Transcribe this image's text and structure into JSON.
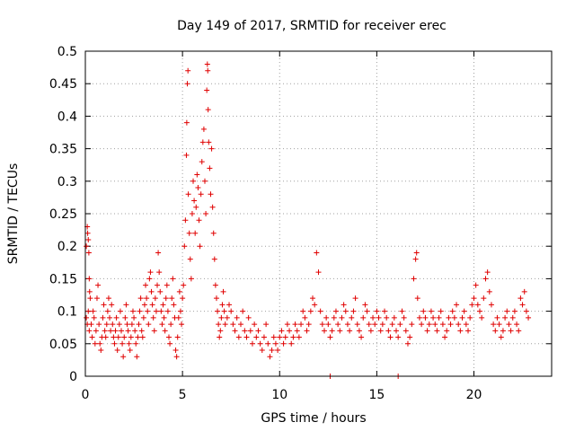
{
  "chart_data": {
    "type": "scatter",
    "title": "Day 149 of 2017, SRMTID for receiver erec",
    "xlabel": "GPS time / hours",
    "ylabel": "SRMTID / TECUs",
    "xlim": [
      0,
      24
    ],
    "ylim": [
      0,
      0.5
    ],
    "xticks": [
      0,
      5,
      10,
      15,
      20
    ],
    "yticks": [
      0,
      0.05,
      0.1,
      0.15,
      0.2,
      0.25,
      0.3,
      0.35,
      0.4,
      0.45,
      0.5
    ],
    "xtick_labels": [
      "0",
      "5",
      "10",
      "15",
      "20"
    ],
    "ytick_labels": [
      "0",
      "0.05",
      "0.1",
      "0.15",
      "0.2",
      "0.25",
      "0.3",
      "0.35",
      "0.4",
      "0.45",
      "0.5"
    ],
    "grid": true,
    "marker": "+",
    "color": "#e00000",
    "series": [
      {
        "name": "SRMTID",
        "points": [
          [
            0.05,
            0.2
          ],
          [
            0.1,
            0.23
          ],
          [
            0.12,
            0.22
          ],
          [
            0.15,
            0.21
          ],
          [
            0.18,
            0.19
          ],
          [
            0.2,
            0.15
          ],
          [
            0.22,
            0.13
          ],
          [
            0.25,
            0.12
          ],
          [
            0.05,
            0.09
          ],
          [
            0.1,
            0.08
          ],
          [
            0.15,
            0.1
          ],
          [
            0.2,
            0.07
          ],
          [
            0.3,
            0.08
          ],
          [
            0.35,
            0.06
          ],
          [
            0.4,
            0.1
          ],
          [
            0.45,
            0.09
          ],
          [
            0.5,
            0.05
          ],
          [
            0.55,
            0.07
          ],
          [
            0.6,
            0.12
          ],
          [
            0.65,
            0.14
          ],
          [
            0.7,
            0.08
          ],
          [
            0.75,
            0.05
          ],
          [
            0.8,
            0.04
          ],
          [
            0.85,
            0.06
          ],
          [
            0.9,
            0.09
          ],
          [
            0.95,
            0.11
          ],
          [
            1.0,
            0.07
          ],
          [
            1.05,
            0.06
          ],
          [
            1.1,
            0.08
          ],
          [
            1.15,
            0.1
          ],
          [
            1.2,
            0.12
          ],
          [
            1.25,
            0.09
          ],
          [
            1.3,
            0.07
          ],
          [
            1.35,
            0.11
          ],
          [
            1.4,
            0.08
          ],
          [
            1.45,
            0.06
          ],
          [
            1.5,
            0.05
          ],
          [
            1.55,
            0.07
          ],
          [
            1.6,
            0.09
          ],
          [
            1.65,
            0.04
          ],
          [
            1.7,
            0.06
          ],
          [
            1.75,
            0.08
          ],
          [
            1.8,
            0.1
          ],
          [
            1.85,
            0.07
          ],
          [
            1.9,
            0.05
          ],
          [
            1.95,
            0.03
          ],
          [
            2.0,
            0.06
          ],
          [
            2.05,
            0.09
          ],
          [
            2.1,
            0.11
          ],
          [
            2.15,
            0.08
          ],
          [
            2.2,
            0.07
          ],
          [
            2.25,
            0.05
          ],
          [
            2.3,
            0.04
          ],
          [
            2.35,
            0.06
          ],
          [
            2.4,
            0.08
          ],
          [
            2.45,
            0.1
          ],
          [
            2.5,
            0.09
          ],
          [
            2.55,
            0.07
          ],
          [
            2.6,
            0.05
          ],
          [
            2.65,
            0.03
          ],
          [
            2.7,
            0.06
          ],
          [
            2.75,
            0.08
          ],
          [
            2.8,
            0.1
          ],
          [
            2.85,
            0.12
          ],
          [
            2.9,
            0.07
          ],
          [
            2.95,
            0.06
          ],
          [
            3.0,
            0.09
          ],
          [
            3.05,
            0.11
          ],
          [
            3.1,
            0.14
          ],
          [
            3.15,
            0.12
          ],
          [
            3.2,
            0.1
          ],
          [
            3.25,
            0.08
          ],
          [
            3.3,
            0.15
          ],
          [
            3.35,
            0.16
          ],
          [
            3.4,
            0.13
          ],
          [
            3.45,
            0.11
          ],
          [
            3.5,
            0.09
          ],
          [
            3.55,
            0.07
          ],
          [
            3.6,
            0.12
          ],
          [
            3.65,
            0.1
          ],
          [
            3.7,
            0.14
          ],
          [
            3.75,
            0.19
          ],
          [
            3.8,
            0.16
          ],
          [
            3.85,
            0.13
          ],
          [
            3.9,
            0.1
          ],
          [
            3.95,
            0.08
          ],
          [
            4.0,
            0.11
          ],
          [
            4.05,
            0.09
          ],
          [
            4.1,
            0.07
          ],
          [
            4.15,
            0.12
          ],
          [
            4.2,
            0.14
          ],
          [
            4.25,
            0.1
          ],
          [
            4.3,
            0.06
          ],
          [
            4.35,
            0.05
          ],
          [
            4.4,
            0.08
          ],
          [
            4.45,
            0.12
          ],
          [
            4.5,
            0.15
          ],
          [
            4.55,
            0.11
          ],
          [
            4.6,
            0.09
          ],
          [
            4.65,
            0.04
          ],
          [
            4.7,
            0.03
          ],
          [
            4.75,
            0.06
          ],
          [
            4.8,
            0.09
          ],
          [
            4.85,
            0.13
          ],
          [
            4.9,
            0.1
          ],
          [
            4.95,
            0.08
          ],
          [
            5.0,
            0.12
          ],
          [
            5.05,
            0.14
          ],
          [
            5.1,
            0.2
          ],
          [
            5.15,
            0.24
          ],
          [
            5.2,
            0.34
          ],
          [
            5.22,
            0.39
          ],
          [
            5.25,
            0.45
          ],
          [
            5.28,
            0.47
          ],
          [
            5.3,
            0.28
          ],
          [
            5.35,
            0.22
          ],
          [
            5.4,
            0.18
          ],
          [
            5.45,
            0.15
          ],
          [
            5.5,
            0.25
          ],
          [
            5.55,
            0.3
          ],
          [
            5.6,
            0.27
          ],
          [
            5.65,
            0.22
          ],
          [
            5.7,
            0.26
          ],
          [
            5.75,
            0.31
          ],
          [
            5.8,
            0.29
          ],
          [
            5.85,
            0.24
          ],
          [
            5.9,
            0.2
          ],
          [
            5.95,
            0.28
          ],
          [
            6.0,
            0.33
          ],
          [
            6.05,
            0.36
          ],
          [
            6.1,
            0.38
          ],
          [
            6.15,
            0.3
          ],
          [
            6.2,
            0.25
          ],
          [
            6.25,
            0.44
          ],
          [
            6.28,
            0.48
          ],
          [
            6.3,
            0.47
          ],
          [
            6.32,
            0.41
          ],
          [
            6.35,
            0.36
          ],
          [
            6.4,
            0.32
          ],
          [
            6.45,
            0.28
          ],
          [
            6.5,
            0.35
          ],
          [
            6.55,
            0.26
          ],
          [
            6.6,
            0.22
          ],
          [
            6.65,
            0.18
          ],
          [
            6.7,
            0.14
          ],
          [
            6.75,
            0.12
          ],
          [
            6.8,
            0.1
          ],
          [
            6.85,
            0.08
          ],
          [
            6.9,
            0.06
          ],
          [
            6.95,
            0.07
          ],
          [
            7.0,
            0.09
          ],
          [
            7.05,
            0.11
          ],
          [
            7.1,
            0.13
          ],
          [
            7.15,
            0.1
          ],
          [
            7.2,
            0.08
          ],
          [
            7.3,
            0.09
          ],
          [
            7.4,
            0.11
          ],
          [
            7.5,
            0.1
          ],
          [
            7.6,
            0.08
          ],
          [
            7.7,
            0.07
          ],
          [
            7.8,
            0.09
          ],
          [
            7.9,
            0.06
          ],
          [
            8.0,
            0.08
          ],
          [
            8.1,
            0.1
          ],
          [
            8.2,
            0.07
          ],
          [
            8.3,
            0.06
          ],
          [
            8.4,
            0.09
          ],
          [
            8.5,
            0.07
          ],
          [
            8.6,
            0.05
          ],
          [
            8.7,
            0.08
          ],
          [
            8.8,
            0.06
          ],
          [
            8.9,
            0.07
          ],
          [
            9.0,
            0.05
          ],
          [
            9.1,
            0.04
          ],
          [
            9.2,
            0.06
          ],
          [
            9.3,
            0.08
          ],
          [
            9.4,
            0.05
          ],
          [
            9.5,
            0.03
          ],
          [
            9.6,
            0.04
          ],
          [
            9.7,
            0.06
          ],
          [
            9.8,
            0.05
          ],
          [
            9.9,
            0.04
          ],
          [
            10.0,
            0.06
          ],
          [
            10.1,
            0.07
          ],
          [
            10.2,
            0.05
          ],
          [
            10.3,
            0.06
          ],
          [
            10.4,
            0.08
          ],
          [
            10.5,
            0.07
          ],
          [
            10.6,
            0.05
          ],
          [
            10.7,
            0.06
          ],
          [
            10.8,
            0.08
          ],
          [
            10.9,
            0.07
          ],
          [
            11.0,
            0.06
          ],
          [
            11.1,
            0.08
          ],
          [
            11.2,
            0.1
          ],
          [
            11.3,
            0.09
          ],
          [
            11.4,
            0.07
          ],
          [
            11.5,
            0.08
          ],
          [
            11.6,
            0.1
          ],
          [
            11.7,
            0.12
          ],
          [
            11.8,
            0.11
          ],
          [
            11.9,
            0.19
          ],
          [
            12.0,
            0.16
          ],
          [
            12.1,
            0.1
          ],
          [
            12.2,
            0.08
          ],
          [
            12.3,
            0.07
          ],
          [
            12.4,
            0.09
          ],
          [
            12.5,
            0.08
          ],
          [
            12.6,
            0.06
          ],
          [
            12.7,
            0.07
          ],
          [
            12.8,
            0.09
          ],
          [
            12.9,
            0.1
          ],
          [
            13.0,
            0.08
          ],
          [
            13.1,
            0.07
          ],
          [
            13.2,
            0.09
          ],
          [
            13.3,
            0.11
          ],
          [
            13.4,
            0.1
          ],
          [
            13.5,
            0.08
          ],
          [
            13.6,
            0.07
          ],
          [
            13.7,
            0.09
          ],
          [
            13.8,
            0.1
          ],
          [
            13.9,
            0.12
          ],
          [
            14.0,
            0.08
          ],
          [
            14.1,
            0.07
          ],
          [
            14.2,
            0.06
          ],
          [
            14.3,
            0.09
          ],
          [
            14.4,
            0.11
          ],
          [
            14.5,
            0.1
          ],
          [
            14.6,
            0.08
          ],
          [
            14.7,
            0.07
          ],
          [
            14.8,
            0.09
          ],
          [
            14.9,
            0.08
          ],
          [
            15.0,
            0.1
          ],
          [
            15.1,
            0.09
          ],
          [
            15.2,
            0.07
          ],
          [
            15.3,
            0.08
          ],
          [
            15.4,
            0.1
          ],
          [
            15.5,
            0.09
          ],
          [
            15.6,
            0.07
          ],
          [
            15.7,
            0.06
          ],
          [
            15.8,
            0.08
          ],
          [
            15.9,
            0.09
          ],
          [
            16.0,
            0.07
          ],
          [
            16.1,
            0.06
          ],
          [
            16.2,
            0.08
          ],
          [
            16.3,
            0.1
          ],
          [
            16.4,
            0.09
          ],
          [
            16.5,
            0.07
          ],
          [
            16.6,
            0.05
          ],
          [
            16.7,
            0.06
          ],
          [
            16.8,
            0.08
          ],
          [
            16.9,
            0.15
          ],
          [
            17.0,
            0.18
          ],
          [
            17.05,
            0.19
          ],
          [
            17.1,
            0.12
          ],
          [
            17.2,
            0.09
          ],
          [
            17.3,
            0.08
          ],
          [
            17.4,
            0.1
          ],
          [
            17.5,
            0.09
          ],
          [
            17.6,
            0.07
          ],
          [
            17.7,
            0.08
          ],
          [
            17.8,
            0.1
          ],
          [
            17.9,
            0.09
          ],
          [
            18.0,
            0.08
          ],
          [
            18.1,
            0.07
          ],
          [
            18.2,
            0.09
          ],
          [
            18.3,
            0.1
          ],
          [
            18.4,
            0.08
          ],
          [
            18.5,
            0.06
          ],
          [
            18.6,
            0.07
          ],
          [
            18.7,
            0.09
          ],
          [
            18.8,
            0.08
          ],
          [
            18.9,
            0.1
          ],
          [
            19.0,
            0.09
          ],
          [
            19.1,
            0.11
          ],
          [
            19.2,
            0.08
          ],
          [
            19.3,
            0.07
          ],
          [
            19.4,
            0.09
          ],
          [
            19.5,
            0.1
          ],
          [
            19.6,
            0.08
          ],
          [
            19.7,
            0.07
          ],
          [
            19.8,
            0.09
          ],
          [
            19.9,
            0.11
          ],
          [
            20.0,
            0.12
          ],
          [
            20.1,
            0.14
          ],
          [
            20.2,
            0.11
          ],
          [
            20.3,
            0.1
          ],
          [
            20.4,
            0.09
          ],
          [
            20.5,
            0.12
          ],
          [
            20.6,
            0.15
          ],
          [
            20.7,
            0.16
          ],
          [
            20.8,
            0.13
          ],
          [
            20.9,
            0.11
          ],
          [
            21.0,
            0.08
          ],
          [
            21.1,
            0.07
          ],
          [
            21.2,
            0.09
          ],
          [
            21.3,
            0.08
          ],
          [
            21.4,
            0.06
          ],
          [
            21.5,
            0.07
          ],
          [
            21.6,
            0.09
          ],
          [
            21.7,
            0.1
          ],
          [
            21.8,
            0.08
          ],
          [
            21.9,
            0.07
          ],
          [
            22.0,
            0.09
          ],
          [
            22.1,
            0.1
          ],
          [
            22.2,
            0.08
          ],
          [
            22.3,
            0.07
          ],
          [
            22.4,
            0.12
          ],
          [
            22.5,
            0.11
          ],
          [
            22.6,
            0.13
          ],
          [
            22.7,
            0.1
          ],
          [
            22.8,
            0.09
          ],
          [
            12.6,
            0.0
          ],
          [
            16.1,
            0.0
          ]
        ]
      }
    ]
  }
}
